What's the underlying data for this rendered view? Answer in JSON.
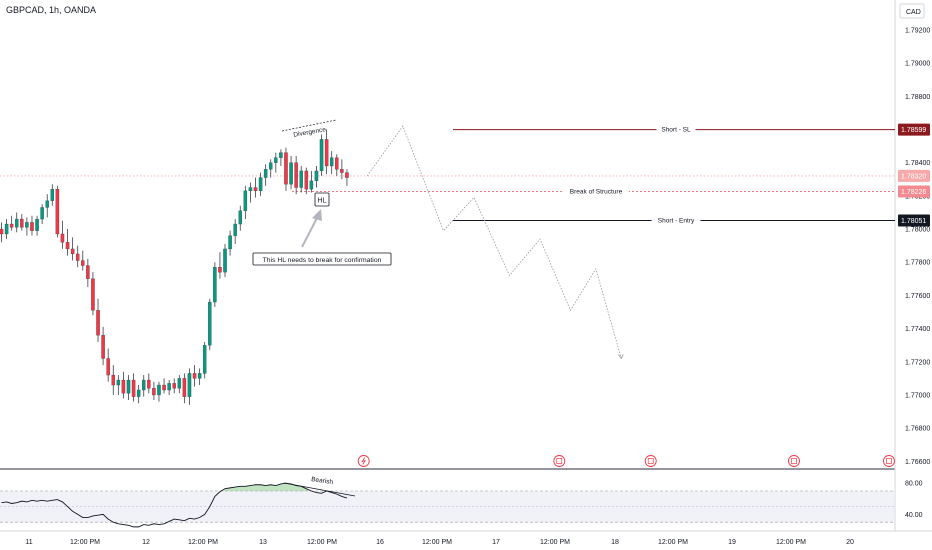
{
  "header": {
    "symbol_label": "GBPCAD, 1h, OANDA",
    "currency": "CAD"
  },
  "chart_data": {
    "type": "candlestick",
    "symbol": "GBPCAD",
    "timeframe": "1h",
    "broker": "OANDA",
    "y_axis": {
      "ticks": [
        1.792,
        1.79,
        1.788,
        1.786,
        1.784,
        1.782,
        1.78,
        1.778,
        1.776,
        1.774,
        1.772,
        1.77,
        1.768,
        1.766
      ],
      "tick_labels": [
        "1.79200",
        "1.79000",
        "1.78800",
        "1.78600",
        "1.78400",
        "1.78200",
        "1.78000",
        "1.77800",
        "1.77600",
        "1.77400",
        "1.77200",
        "1.77000",
        "1.76800",
        "1.76600"
      ],
      "ylim": [
        1.7656,
        1.7938
      ]
    },
    "x_axis": {
      "tick_labels": [
        "11",
        "12:00 PM",
        "12",
        "12:00 PM",
        "13",
        "12:00 PM",
        "16",
        "12:00 PM",
        "17",
        "12:00 PM",
        "18",
        "12:00 PM",
        "19",
        "12:00 PM",
        "20"
      ]
    },
    "candles": [
      {
        "o": 1.78,
        "h": 1.7804,
        "l": 1.7792,
        "c": 1.7797
      },
      {
        "o": 1.7797,
        "h": 1.7806,
        "l": 1.7794,
        "c": 1.7803
      },
      {
        "o": 1.7803,
        "h": 1.7808,
        "l": 1.7799,
        "c": 1.7801
      },
      {
        "o": 1.7801,
        "h": 1.781,
        "l": 1.7798,
        "c": 1.7806
      },
      {
        "o": 1.7806,
        "h": 1.7809,
        "l": 1.7799,
        "c": 1.7801
      },
      {
        "o": 1.7801,
        "h": 1.7807,
        "l": 1.7796,
        "c": 1.7804
      },
      {
        "o": 1.7804,
        "h": 1.7808,
        "l": 1.7796,
        "c": 1.7799
      },
      {
        "o": 1.7799,
        "h": 1.7808,
        "l": 1.7796,
        "c": 1.7806
      },
      {
        "o": 1.7806,
        "h": 1.7815,
        "l": 1.7803,
        "c": 1.7813
      },
      {
        "o": 1.7813,
        "h": 1.7821,
        "l": 1.7807,
        "c": 1.7817
      },
      {
        "o": 1.7817,
        "h": 1.7827,
        "l": 1.7814,
        "c": 1.7824
      },
      {
        "o": 1.7824,
        "h": 1.7826,
        "l": 1.7795,
        "c": 1.7797
      },
      {
        "o": 1.7797,
        "h": 1.7805,
        "l": 1.7788,
        "c": 1.7792
      },
      {
        "o": 1.7792,
        "h": 1.78,
        "l": 1.7784,
        "c": 1.7788
      },
      {
        "o": 1.7788,
        "h": 1.7795,
        "l": 1.7781,
        "c": 1.7785
      },
      {
        "o": 1.7785,
        "h": 1.779,
        "l": 1.7777,
        "c": 1.7781
      },
      {
        "o": 1.7781,
        "h": 1.7787,
        "l": 1.7775,
        "c": 1.7778
      },
      {
        "o": 1.7778,
        "h": 1.7782,
        "l": 1.7765,
        "c": 1.777
      },
      {
        "o": 1.777,
        "h": 1.7774,
        "l": 1.7748,
        "c": 1.7751
      },
      {
        "o": 1.7751,
        "h": 1.7758,
        "l": 1.7732,
        "c": 1.7736
      },
      {
        "o": 1.7736,
        "h": 1.7741,
        "l": 1.7718,
        "c": 1.7722
      },
      {
        "o": 1.7722,
        "h": 1.7728,
        "l": 1.7708,
        "c": 1.7712
      },
      {
        "o": 1.7712,
        "h": 1.7718,
        "l": 1.77,
        "c": 1.7706
      },
      {
        "o": 1.7706,
        "h": 1.7712,
        "l": 1.77,
        "c": 1.7709
      },
      {
        "o": 1.7709,
        "h": 1.7714,
        "l": 1.7698,
        "c": 1.7701
      },
      {
        "o": 1.7701,
        "h": 1.7712,
        "l": 1.7697,
        "c": 1.7709
      },
      {
        "o": 1.7709,
        "h": 1.7713,
        "l": 1.7696,
        "c": 1.7699
      },
      {
        "o": 1.7699,
        "h": 1.7706,
        "l": 1.7695,
        "c": 1.7703
      },
      {
        "o": 1.7703,
        "h": 1.7712,
        "l": 1.7699,
        "c": 1.7709
      },
      {
        "o": 1.7709,
        "h": 1.7713,
        "l": 1.7701,
        "c": 1.7704
      },
      {
        "o": 1.7704,
        "h": 1.7708,
        "l": 1.7697,
        "c": 1.77
      },
      {
        "o": 1.77,
        "h": 1.7708,
        "l": 1.7696,
        "c": 1.7706
      },
      {
        "o": 1.7706,
        "h": 1.771,
        "l": 1.7701,
        "c": 1.7703
      },
      {
        "o": 1.7703,
        "h": 1.7709,
        "l": 1.77,
        "c": 1.7707
      },
      {
        "o": 1.7707,
        "h": 1.771,
        "l": 1.7701,
        "c": 1.7704
      },
      {
        "o": 1.7704,
        "h": 1.7712,
        "l": 1.7701,
        "c": 1.771
      },
      {
        "o": 1.771,
        "h": 1.7713,
        "l": 1.7695,
        "c": 1.7699
      },
      {
        "o": 1.7699,
        "h": 1.7716,
        "l": 1.7694,
        "c": 1.7713
      },
      {
        "o": 1.7713,
        "h": 1.7718,
        "l": 1.7705,
        "c": 1.771
      },
      {
        "o": 1.771,
        "h": 1.7716,
        "l": 1.7706,
        "c": 1.7713
      },
      {
        "o": 1.7713,
        "h": 1.7732,
        "l": 1.771,
        "c": 1.773
      },
      {
        "o": 1.773,
        "h": 1.7758,
        "l": 1.7727,
        "c": 1.7756
      },
      {
        "o": 1.7756,
        "h": 1.778,
        "l": 1.7753,
        "c": 1.7777
      },
      {
        "o": 1.7777,
        "h": 1.7786,
        "l": 1.777,
        "c": 1.7774
      },
      {
        "o": 1.7774,
        "h": 1.7791,
        "l": 1.7771,
        "c": 1.7788
      },
      {
        "o": 1.7788,
        "h": 1.7799,
        "l": 1.7784,
        "c": 1.7796
      },
      {
        "o": 1.7796,
        "h": 1.7806,
        "l": 1.7791,
        "c": 1.7803
      },
      {
        "o": 1.7803,
        "h": 1.7814,
        "l": 1.7799,
        "c": 1.7811
      },
      {
        "o": 1.7811,
        "h": 1.7826,
        "l": 1.7806,
        "c": 1.7823
      },
      {
        "o": 1.7823,
        "h": 1.7828,
        "l": 1.7816,
        "c": 1.7825
      },
      {
        "o": 1.7825,
        "h": 1.7831,
        "l": 1.7819,
        "c": 1.7823
      },
      {
        "o": 1.7823,
        "h": 1.7834,
        "l": 1.782,
        "c": 1.7831
      },
      {
        "o": 1.7831,
        "h": 1.7839,
        "l": 1.7826,
        "c": 1.7836
      },
      {
        "o": 1.7836,
        "h": 1.7842,
        "l": 1.7831,
        "c": 1.784
      },
      {
        "o": 1.784,
        "h": 1.7846,
        "l": 1.7834,
        "c": 1.7843
      },
      {
        "o": 1.7843,
        "h": 1.7848,
        "l": 1.7838,
        "c": 1.7846
      },
      {
        "o": 1.7846,
        "h": 1.7849,
        "l": 1.7823,
        "c": 1.7827
      },
      {
        "o": 1.7827,
        "h": 1.7844,
        "l": 1.7824,
        "c": 1.784
      },
      {
        "o": 1.784,
        "h": 1.7844,
        "l": 1.7821,
        "c": 1.7825
      },
      {
        "o": 1.7825,
        "h": 1.7838,
        "l": 1.7822,
        "c": 1.7835
      },
      {
        "o": 1.7835,
        "h": 1.7837,
        "l": 1.7821,
        "c": 1.7824
      },
      {
        "o": 1.7824,
        "h": 1.7835,
        "l": 1.7822,
        "c": 1.7829
      },
      {
        "o": 1.7829,
        "h": 1.7838,
        "l": 1.7825,
        "c": 1.7835
      },
      {
        "o": 1.7835,
        "h": 1.7857,
        "l": 1.7832,
        "c": 1.7854
      },
      {
        "o": 1.7854,
        "h": 1.786,
        "l": 1.7833,
        "c": 1.7838
      },
      {
        "o": 1.7838,
        "h": 1.7847,
        "l": 1.7833,
        "c": 1.7843
      },
      {
        "o": 1.7843,
        "h": 1.7845,
        "l": 1.7832,
        "c": 1.7836
      },
      {
        "o": 1.7836,
        "h": 1.7842,
        "l": 1.783,
        "c": 1.7834
      },
      {
        "o": 1.7834,
        "h": 1.7836,
        "l": 1.7826,
        "c": 1.7831
      }
    ],
    "levels": [
      {
        "name": "Short - SL",
        "price": 1.78599,
        "price_label": "1.78599",
        "color": "#8b1a1f"
      },
      {
        "name": "Short - Entry",
        "price": 1.78051,
        "price_label": "1.78051",
        "color": "#131722"
      },
      {
        "name": "Break of Structure",
        "price": 1.78226,
        "price_label": "1.78226",
        "color": "#e0525e"
      }
    ],
    "current_price": {
      "price": 1.7832,
      "price_label": "1.78320",
      "color": "#f7a9a9"
    },
    "projection": [
      [
        72,
        1.7832
      ],
      [
        79,
        1.7862
      ],
      [
        87,
        1.7799
      ],
      [
        93,
        1.7819
      ],
      [
        100,
        1.7772
      ],
      [
        106,
        1.7794
      ],
      [
        112,
        1.7751
      ],
      [
        117,
        1.7776
      ],
      [
        122,
        1.7722
      ]
    ],
    "annotations": {
      "divergence_label": "Divergence",
      "hl_label": "HL",
      "callout_text": "This HL needs to break for confirmation",
      "bearish_label": "Bearish"
    },
    "event_markers": [
      {
        "icon": "lightning-icon",
        "candle_index": 71.3
      },
      {
        "icon": "flag-icon",
        "candle_index": 109.8
      },
      {
        "icon": "flag-icon",
        "candle_index": 127.8
      },
      {
        "icon": "flag-icon",
        "candle_index": 156.0
      },
      {
        "icon": "flag-icon",
        "candle_index": 174.7
      }
    ],
    "rsi": {
      "upper_band": 70,
      "lower_band": 30,
      "ticks": [
        80,
        40
      ],
      "tick_labels": [
        "80.00",
        "40.00"
      ],
      "values": [
        55,
        56,
        54,
        55,
        57,
        56,
        58,
        57,
        58,
        57,
        58,
        59,
        56,
        50,
        44,
        40,
        36,
        36,
        38,
        39,
        40,
        34,
        30,
        28,
        27,
        26,
        24,
        24,
        27,
        26,
        28,
        27,
        28,
        31,
        34,
        33,
        32,
        35,
        34,
        36,
        40,
        50,
        63,
        69,
        73,
        74,
        75,
        76,
        76,
        77,
        78,
        78,
        77,
        78,
        77,
        79,
        80,
        79,
        77,
        76,
        73,
        70,
        68,
        67,
        70,
        68,
        66,
        63,
        61
      ]
    }
  },
  "colors": {
    "bull": "#089981",
    "bear": "#f23645",
    "axis_text": "#131722",
    "grid": "#f0f3fa"
  }
}
